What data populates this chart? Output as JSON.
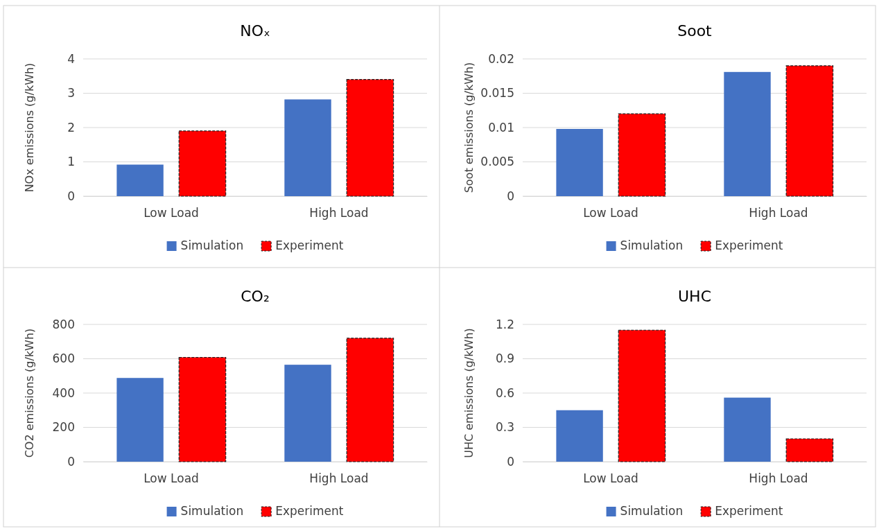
{
  "chart_data": [
    {
      "type": "bar",
      "title": "NOₓ",
      "ylabel": "NOx emissions (g/kWh)",
      "categories": [
        "Low Load",
        "High Load"
      ],
      "series": [
        {
          "name": "Simulation",
          "color": "#4472c4",
          "values": [
            0.92,
            2.82
          ]
        },
        {
          "name": "Experiment",
          "color": "#ff0000",
          "values": [
            1.9,
            3.4
          ]
        }
      ],
      "ylim": [
        0,
        4
      ],
      "yticks": [
        0,
        1,
        2,
        3,
        4
      ],
      "grid": "y",
      "legend": "bottom"
    },
    {
      "type": "bar",
      "title": "Soot",
      "ylabel": "Soot emissions (g/kWh)",
      "categories": [
        "Low Load",
        "High Load"
      ],
      "series": [
        {
          "name": "Simulation",
          "color": "#4472c4",
          "values": [
            0.0098,
            0.0181
          ]
        },
        {
          "name": "Experiment",
          "color": "#ff0000",
          "values": [
            0.012,
            0.019
          ]
        }
      ],
      "ylim": [
        0,
        0.02
      ],
      "yticks": [
        0,
        0.005,
        0.01,
        0.015,
        0.02
      ],
      "grid": "y",
      "legend": "bottom"
    },
    {
      "type": "bar",
      "title": "CO₂",
      "ylabel": "CO2 emissions (g/kWh)",
      "categories": [
        "Low Load",
        "High Load"
      ],
      "series": [
        {
          "name": "Simulation",
          "color": "#4472c4",
          "values": [
            488,
            565
          ]
        },
        {
          "name": "Experiment",
          "color": "#ff0000",
          "values": [
            608,
            720
          ]
        }
      ],
      "ylim": [
        0,
        800
      ],
      "yticks": [
        0,
        200,
        400,
        600,
        800
      ],
      "grid": "y",
      "legend": "bottom"
    },
    {
      "type": "bar",
      "title": "UHC",
      "ylabel": "UHC emissions (g/kWh)",
      "categories": [
        "Low Load",
        "High Load"
      ],
      "series": [
        {
          "name": "Simulation",
          "color": "#4472c4",
          "values": [
            0.45,
            0.56
          ]
        },
        {
          "name": "Experiment",
          "color": "#ff0000",
          "values": [
            1.15,
            0.2
          ]
        }
      ],
      "ylim": [
        0,
        1.2
      ],
      "yticks": [
        0,
        0.3,
        0.6,
        0.9,
        1.2
      ],
      "grid": "y",
      "legend": "bottom"
    }
  ]
}
